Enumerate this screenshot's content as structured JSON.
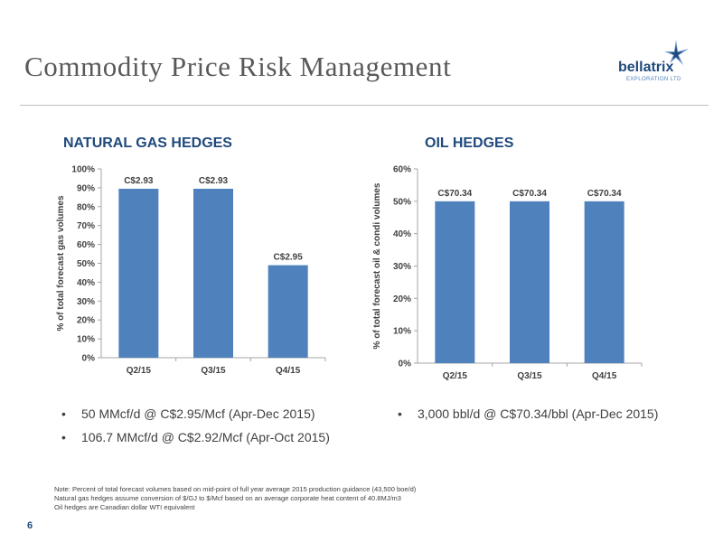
{
  "slide": {
    "title": "Commodity Price Risk Management",
    "page_number": "6"
  },
  "logo": {
    "name": "bellatrix",
    "subtitle": "EXPLORATION LTD",
    "icon": "star-burst-icon",
    "colors": {
      "primary": "#1f497d",
      "secondary": "#4f81bd"
    }
  },
  "colors": {
    "bar": "#4f81bd",
    "heading": "#1f497d"
  },
  "gas_bullets": [
    "50 MMcf/d @ C$2.95/Mcf (Apr-Dec 2015)",
    "106.7 MMcf/d @ C$2.92/Mcf (Apr-Oct 2015)"
  ],
  "oil_bullets": [
    "3,000 bbl/d @ C$70.34/bbl (Apr-Dec 2015)"
  ],
  "notes": [
    "Note: Percent of total forecast volumes based on mid-point of full year average 2015 production guidance (43,500 boe/d)",
    "Natural gas hedges assume conversion of $/GJ to $/Mcf based on an average corporate heat content of 40.8MJ/m3",
    "Oil hedges are Canadian dollar WTI equivalent"
  ],
  "chart_data": [
    {
      "type": "bar",
      "title": "NATURAL GAS HEDGES",
      "categories": [
        "Q2/15",
        "Q3/15",
        "Q4/15"
      ],
      "values": [
        89.5,
        89.5,
        49
      ],
      "data_labels": [
        "C$2.93",
        "C$2.93",
        "C$2.95"
      ],
      "ylabel": "% of total forecast gas volumes",
      "ylim": [
        0,
        100
      ],
      "yticks": [
        "0%",
        "10%",
        "20%",
        "30%",
        "40%",
        "50%",
        "60%",
        "70%",
        "80%",
        "90%",
        "100%"
      ],
      "grid": false,
      "legend": "none"
    },
    {
      "type": "bar",
      "title": "OIL HEDGES",
      "categories": [
        "Q2/15",
        "Q3/15",
        "Q4/15"
      ],
      "values": [
        50,
        50,
        50
      ],
      "data_labels": [
        "C$70.34",
        "C$70.34",
        "C$70.34"
      ],
      "ylabel": "% of total forecast oil & condi volumes",
      "ylim": [
        0,
        60
      ],
      "yticks": [
        "0%",
        "10%",
        "20%",
        "30%",
        "40%",
        "50%",
        "60%"
      ],
      "grid": false,
      "legend": "none"
    }
  ]
}
